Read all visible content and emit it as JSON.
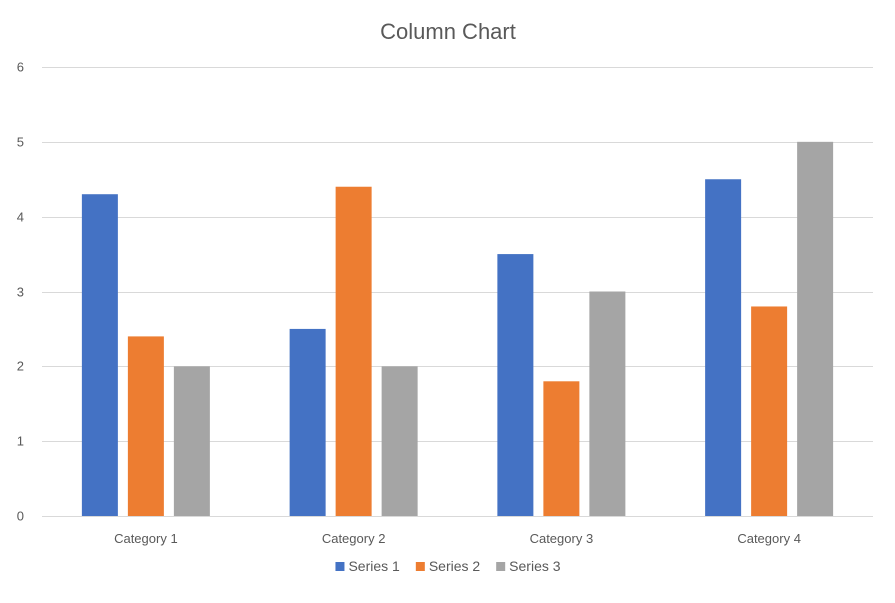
{
  "chart_data": {
    "type": "bar",
    "title": "Column Chart",
    "xlabel": "",
    "ylabel": "",
    "categories": [
      "Category 1",
      "Category 2",
      "Category 3",
      "Category 4"
    ],
    "series": [
      {
        "name": "Series 1",
        "color": "#4472C4",
        "values": [
          4.3,
          2.5,
          3.5,
          4.5
        ]
      },
      {
        "name": "Series 2",
        "color": "#ED7D31",
        "values": [
          2.4,
          4.4,
          1.8,
          2.8
        ]
      },
      {
        "name": "Series 3",
        "color": "#A5A5A5",
        "values": [
          2,
          2,
          3,
          5
        ]
      }
    ],
    "ylim": [
      0,
      6
    ],
    "y_ticks": [
      0,
      1,
      2,
      3,
      4,
      5,
      6
    ],
    "grid": true,
    "gridline_color": "#D9D9D9",
    "legend_position": "bottom"
  }
}
